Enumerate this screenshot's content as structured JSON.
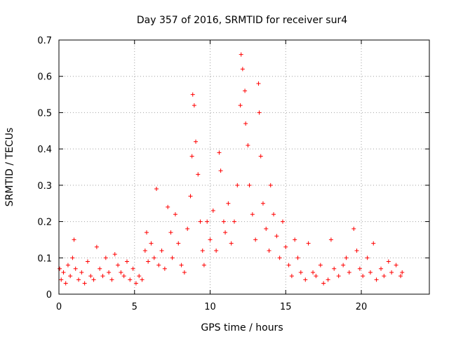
{
  "chart_data": {
    "type": "scatter",
    "title": "Day 357 of 2016, SRMTID for receiver sur4",
    "xlabel": "GPS time / hours",
    "ylabel": "SRMTID / TECUs",
    "xlim": [
      0,
      24.5
    ],
    "ylim": [
      0,
      0.7
    ],
    "grid": true,
    "grid_style": "dotted",
    "marker": "+",
    "color": "#ff0000",
    "x_ticks": [
      {
        "value": 0,
        "label": "0"
      },
      {
        "value": 5,
        "label": "5"
      },
      {
        "value": 10,
        "label": "10"
      },
      {
        "value": 15,
        "label": "15"
      },
      {
        "value": 20,
        "label": "20"
      }
    ],
    "y_ticks": [
      {
        "value": 0,
        "label": "0"
      },
      {
        "value": 0.1,
        "label": "0.1"
      },
      {
        "value": 0.2,
        "label": "0.2"
      },
      {
        "value": 0.3,
        "label": "0.3"
      },
      {
        "value": 0.4,
        "label": "0.4"
      },
      {
        "value": 0.5,
        "label": "0.5"
      },
      {
        "value": 0.6,
        "label": "0.6"
      },
      {
        "value": 0.7,
        "label": "0.7"
      }
    ],
    "series": [
      {
        "name": "sur4",
        "points": [
          [
            0.05,
            0.07
          ],
          [
            0.15,
            0.04
          ],
          [
            0.3,
            0.06
          ],
          [
            0.45,
            0.03
          ],
          [
            0.6,
            0.08
          ],
          [
            0.75,
            0.05
          ],
          [
            0.9,
            0.1
          ],
          [
            1.0,
            0.15
          ],
          [
            1.1,
            0.07
          ],
          [
            1.3,
            0.04
          ],
          [
            1.5,
            0.06
          ],
          [
            1.7,
            0.03
          ],
          [
            1.9,
            0.09
          ],
          [
            2.1,
            0.05
          ],
          [
            2.3,
            0.04
          ],
          [
            2.5,
            0.13
          ],
          [
            2.7,
            0.07
          ],
          [
            2.9,
            0.05
          ],
          [
            3.1,
            0.1
          ],
          [
            3.3,
            0.06
          ],
          [
            3.5,
            0.04
          ],
          [
            3.7,
            0.11
          ],
          [
            3.9,
            0.08
          ],
          [
            4.1,
            0.06
          ],
          [
            4.3,
            0.05
          ],
          [
            4.5,
            0.09
          ],
          [
            4.7,
            0.04
          ],
          [
            4.9,
            0.07
          ],
          [
            5.1,
            0.03
          ],
          [
            5.3,
            0.05
          ],
          [
            5.5,
            0.04
          ],
          [
            5.7,
            0.12
          ],
          [
            5.8,
            0.17
          ],
          [
            5.9,
            0.09
          ],
          [
            6.1,
            0.14
          ],
          [
            6.3,
            0.1
          ],
          [
            6.45,
            0.29
          ],
          [
            6.6,
            0.08
          ],
          [
            6.8,
            0.12
          ],
          [
            7.0,
            0.07
          ],
          [
            7.2,
            0.24
          ],
          [
            7.4,
            0.17
          ],
          [
            7.5,
            0.1
          ],
          [
            7.7,
            0.22
          ],
          [
            7.9,
            0.14
          ],
          [
            8.1,
            0.08
          ],
          [
            8.3,
            0.06
          ],
          [
            8.5,
            0.18
          ],
          [
            8.7,
            0.27
          ],
          [
            8.8,
            0.38
          ],
          [
            8.85,
            0.55
          ],
          [
            8.95,
            0.52
          ],
          [
            9.05,
            0.42
          ],
          [
            9.2,
            0.33
          ],
          [
            9.35,
            0.2
          ],
          [
            9.5,
            0.12
          ],
          [
            9.6,
            0.08
          ],
          [
            9.8,
            0.2
          ],
          [
            10.0,
            0.15
          ],
          [
            10.2,
            0.23
          ],
          [
            10.4,
            0.12
          ],
          [
            10.6,
            0.39
          ],
          [
            10.7,
            0.34
          ],
          [
            10.9,
            0.2
          ],
          [
            11.0,
            0.17
          ],
          [
            11.2,
            0.25
          ],
          [
            11.4,
            0.14
          ],
          [
            11.6,
            0.2
          ],
          [
            11.8,
            0.3
          ],
          [
            12.0,
            0.52
          ],
          [
            12.05,
            0.66
          ],
          [
            12.15,
            0.62
          ],
          [
            12.3,
            0.56
          ],
          [
            12.35,
            0.47
          ],
          [
            12.5,
            0.41
          ],
          [
            12.6,
            0.3
          ],
          [
            12.8,
            0.22
          ],
          [
            13.0,
            0.15
          ],
          [
            13.2,
            0.58
          ],
          [
            13.25,
            0.5
          ],
          [
            13.35,
            0.38
          ],
          [
            13.5,
            0.25
          ],
          [
            13.7,
            0.18
          ],
          [
            13.9,
            0.12
          ],
          [
            14.0,
            0.3
          ],
          [
            14.2,
            0.22
          ],
          [
            14.4,
            0.16
          ],
          [
            14.6,
            0.1
          ],
          [
            14.8,
            0.2
          ],
          [
            15.0,
            0.13
          ],
          [
            15.2,
            0.08
          ],
          [
            15.4,
            0.05
          ],
          [
            15.6,
            0.15
          ],
          [
            15.8,
            0.1
          ],
          [
            16.0,
            0.06
          ],
          [
            16.3,
            0.04
          ],
          [
            16.5,
            0.14
          ],
          [
            16.8,
            0.06
          ],
          [
            17.0,
            0.05
          ],
          [
            17.3,
            0.08
          ],
          [
            17.5,
            0.03
          ],
          [
            17.8,
            0.04
          ],
          [
            18.0,
            0.15
          ],
          [
            18.2,
            0.07
          ],
          [
            18.5,
            0.05
          ],
          [
            18.8,
            0.08
          ],
          [
            19.0,
            0.1
          ],
          [
            19.2,
            0.06
          ],
          [
            19.5,
            0.18
          ],
          [
            19.7,
            0.12
          ],
          [
            19.9,
            0.07
          ],
          [
            20.1,
            0.05
          ],
          [
            20.4,
            0.1
          ],
          [
            20.6,
            0.06
          ],
          [
            20.8,
            0.14
          ],
          [
            21.0,
            0.04
          ],
          [
            21.3,
            0.07
          ],
          [
            21.5,
            0.05
          ],
          [
            21.8,
            0.09
          ],
          [
            22.0,
            0.06
          ],
          [
            22.3,
            0.08
          ],
          [
            22.6,
            0.05
          ],
          [
            22.7,
            0.06
          ]
        ]
      }
    ]
  }
}
